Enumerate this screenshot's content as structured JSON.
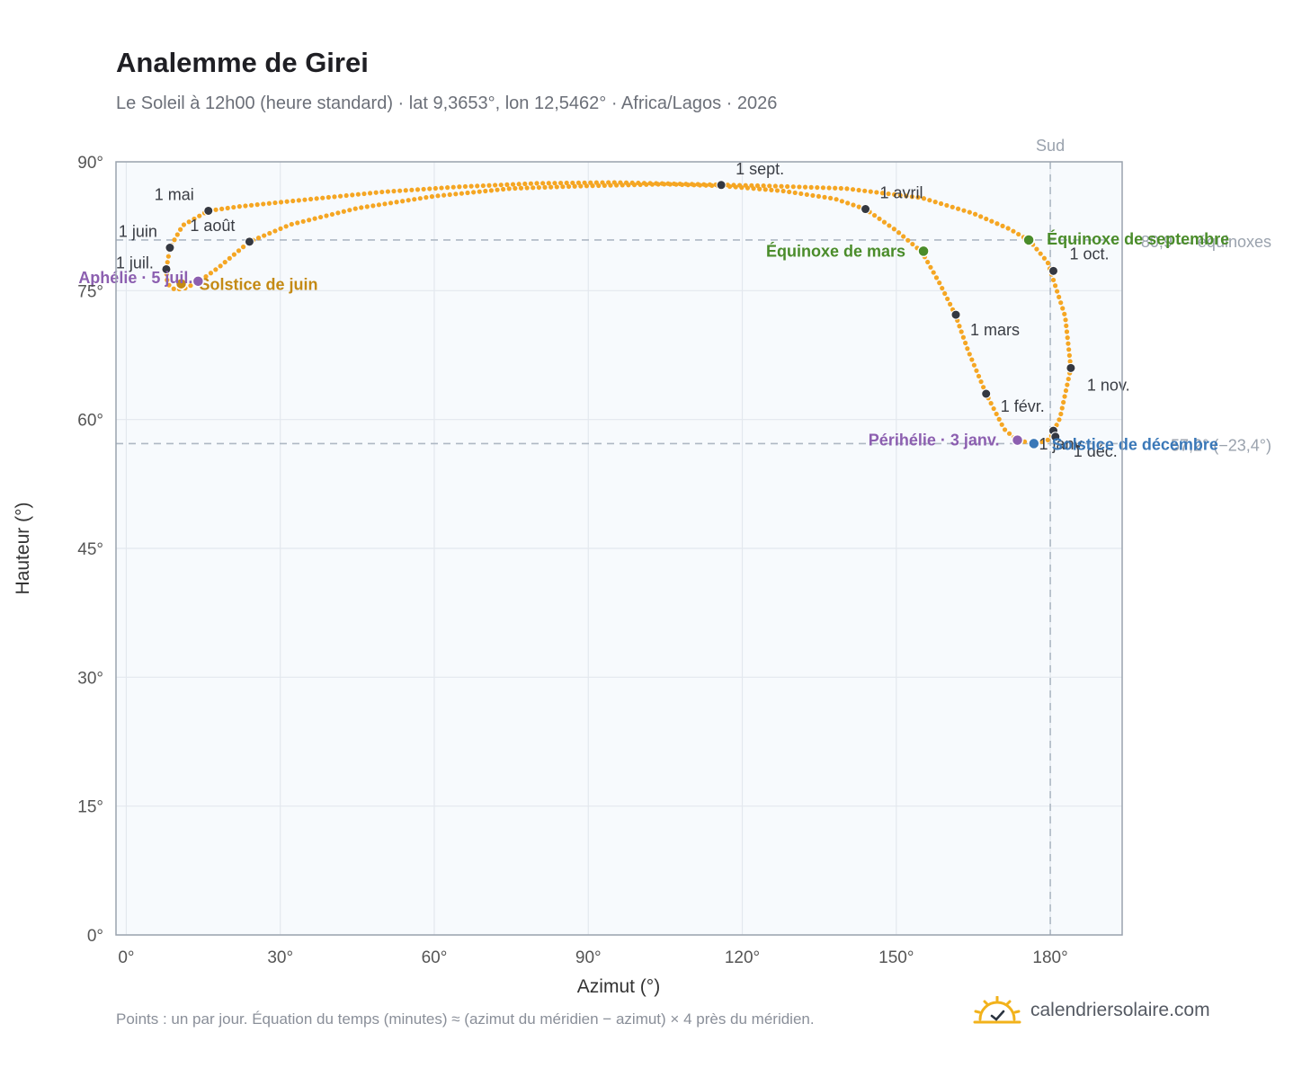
{
  "title": "Analemme de Girei",
  "subtitle": "Le Soleil à 12h00 (heure standard) · lat 9,3653°, lon 12,5462° · Africa/Lagos · 2026",
  "footnote": "Points : un par jour. Équation du temps (minutes) ≈ (azimut du méridien − azimut) × 4 près du méridien.",
  "brand": {
    "name": "calendriersolaire.com",
    "icon": "sun-check-icon",
    "color": "#f2b21b"
  },
  "chart_data": {
    "type": "scatter",
    "xlabel": "Azimut (°)",
    "ylabel": "Hauteur (°)",
    "xlim": [
      -2,
      194
    ],
    "ylim": [
      0,
      90
    ],
    "x_ticks": [
      0,
      30,
      60,
      90,
      120,
      150,
      180
    ],
    "y_ticks": [
      0,
      15,
      30,
      45,
      60,
      75,
      90
    ],
    "x_tick_labels": [
      "0°",
      "30°",
      "60°",
      "90°",
      "120°",
      "150°",
      "180°"
    ],
    "y_tick_labels": [
      "0°",
      "15°",
      "30°",
      "45°",
      "60°",
      "75°",
      "90°"
    ],
    "grid": true,
    "point_color": "#f5a623",
    "path_anchors": [
      {
        "x": 177.3,
        "y": 57.2
      },
      {
        "x": 179.9,
        "y": 57.7
      },
      {
        "x": 181.9,
        "y": 60.2
      },
      {
        "x": 184.0,
        "y": 66.0
      },
      {
        "x": 182.9,
        "y": 72.0
      },
      {
        "x": 179.5,
        "y": 78.3
      },
      {
        "x": 176.0,
        "y": 80.8
      },
      {
        "x": 172.0,
        "y": 82.2
      },
      {
        "x": 165.0,
        "y": 84.0
      },
      {
        "x": 155.0,
        "y": 85.8
      },
      {
        "x": 140.0,
        "y": 86.9
      },
      {
        "x": 125.0,
        "y": 87.2
      },
      {
        "x": 110.0,
        "y": 87.4
      },
      {
        "x": 95.0,
        "y": 87.6
      },
      {
        "x": 80.0,
        "y": 87.5
      },
      {
        "x": 65.0,
        "y": 87.1
      },
      {
        "x": 50.0,
        "y": 86.5
      },
      {
        "x": 35.0,
        "y": 85.6
      },
      {
        "x": 22.0,
        "y": 84.8
      },
      {
        "x": 16.0,
        "y": 84.3
      },
      {
        "x": 11.0,
        "y": 82.6
      },
      {
        "x": 8.5,
        "y": 80.0
      },
      {
        "x": 7.8,
        "y": 77.5
      },
      {
        "x": 8.0,
        "y": 75.8
      },
      {
        "x": 9.5,
        "y": 75.1
      },
      {
        "x": 11.5,
        "y": 75.3
      },
      {
        "x": 14.0,
        "y": 76.0
      },
      {
        "x": 18.0,
        "y": 77.7
      },
      {
        "x": 24.0,
        "y": 80.7
      },
      {
        "x": 32.0,
        "y": 82.7
      },
      {
        "x": 45.0,
        "y": 84.6
      },
      {
        "x": 60.0,
        "y": 86.0
      },
      {
        "x": 75.0,
        "y": 86.9
      },
      {
        "x": 90.0,
        "y": 87.2
      },
      {
        "x": 105.0,
        "y": 87.4
      },
      {
        "x": 116.0,
        "y": 87.2
      },
      {
        "x": 128.0,
        "y": 86.6
      },
      {
        "x": 138.0,
        "y": 85.7
      },
      {
        "x": 144.0,
        "y": 84.5
      },
      {
        "x": 150.0,
        "y": 82.0
      },
      {
        "x": 155.0,
        "y": 79.5
      },
      {
        "x": 158.5,
        "y": 75.8
      },
      {
        "x": 161.5,
        "y": 72.2
      },
      {
        "x": 164.0,
        "y": 68.0
      },
      {
        "x": 167.5,
        "y": 63.0
      },
      {
        "x": 171.0,
        "y": 58.9
      },
      {
        "x": 173.5,
        "y": 57.6
      },
      {
        "x": 176.0,
        "y": 57.3
      }
    ],
    "dashed_lines": [
      {
        "orientation": "horizontal",
        "y": 80.9,
        "label": "80,9 — équinoxes"
      },
      {
        "orientation": "horizontal",
        "y": 57.2,
        "label": "57,2° (−23,4°)"
      },
      {
        "orientation": "vertical",
        "x": 180,
        "label": "Sud"
      }
    ],
    "month_markers": [
      {
        "label": "1 janv.",
        "x": 180.6,
        "y": 58.7
      },
      {
        "label": "1 févr.",
        "x": 167.5,
        "y": 63.0
      },
      {
        "label": "1 mars",
        "x": 161.6,
        "y": 72.2
      },
      {
        "label": "1 avril",
        "x": 144.0,
        "y": 84.5
      },
      {
        "label": "1 mai",
        "x": 16.0,
        "y": 84.3
      },
      {
        "label": "1 juin",
        "x": 8.5,
        "y": 80.0
      },
      {
        "label": "1 juil.",
        "x": 7.8,
        "y": 77.5
      },
      {
        "label": "1 août",
        "x": 24.0,
        "y": 80.7
      },
      {
        "label": "1 sept.",
        "x": 115.9,
        "y": 87.3
      },
      {
        "label": "1 oct.",
        "x": 180.6,
        "y": 77.3
      },
      {
        "label": "1 nov.",
        "x": 184.0,
        "y": 66.0
      },
      {
        "label": "1 déc.",
        "x": 181.0,
        "y": 58.0
      }
    ],
    "events": [
      {
        "label": "Équinoxe de mars",
        "x": 155.3,
        "y": 79.6,
        "color": "#4a8c2a"
      },
      {
        "label": "Équinoxe de septembre",
        "x": 175.8,
        "y": 80.9,
        "color": "#4a8c2a"
      },
      {
        "label": "Solstice de juin",
        "x": 10.7,
        "y": 75.8,
        "color": "#c48a14"
      },
      {
        "label": "Solstice de décembre",
        "x": 176.8,
        "y": 57.2,
        "color": "#3a78b8"
      },
      {
        "label": "Aphélie · 5 juil.",
        "x": 14.0,
        "y": 76.1,
        "color": "#8c5fb0"
      },
      {
        "label": "Périhélie · 3 janv.",
        "x": 173.6,
        "y": 57.6,
        "color": "#8c5fb0"
      }
    ]
  }
}
